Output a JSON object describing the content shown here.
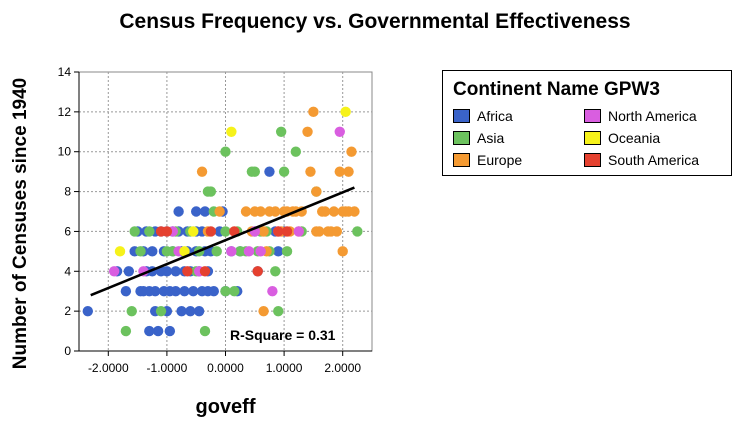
{
  "title": "Census Frequency vs. Governmental Effectiveness",
  "legend": {
    "title": "Continent Name GPW3",
    "items": [
      {
        "label": "Africa",
        "color": "#3a63c9"
      },
      {
        "label": "North America",
        "color": "#d95ee0"
      },
      {
        "label": "Asia",
        "color": "#6cc25e"
      },
      {
        "label": "Oceania",
        "color": "#f6f21a"
      },
      {
        "label": "Europe",
        "color": "#f49a32"
      },
      {
        "label": "South America",
        "color": "#e5412f"
      }
    ]
  },
  "chart_data": {
    "type": "scatter",
    "title": "Census Frequency vs. Governmental Effectiveness",
    "xlabel": "goveff",
    "ylabel": "Number of Censuses since 1940",
    "xlim": [
      -2.5,
      2.5
    ],
    "ylim": [
      0,
      14
    ],
    "x_ticks": [
      "-2.0000",
      "-1.0000",
      "0.0000",
      "1.0000",
      "2.0000"
    ],
    "y_ticks": [
      "0",
      "2",
      "4",
      "6",
      "8",
      "10",
      "12",
      "14"
    ],
    "grid": true,
    "annotation": "R-Square = 0.31",
    "fit_line": {
      "x": [
        -2.3,
        2.2
      ],
      "y": [
        2.8,
        8.2
      ]
    },
    "series": [
      {
        "name": "Africa",
        "color": "#3a63c9",
        "points": [
          [
            -2.35,
            2
          ],
          [
            -1.85,
            4
          ],
          [
            -1.7,
            3
          ],
          [
            -1.65,
            4
          ],
          [
            -1.55,
            5
          ],
          [
            -1.5,
            6
          ],
          [
            -1.45,
            3
          ],
          [
            -1.4,
            5
          ],
          [
            -1.4,
            3
          ],
          [
            -1.35,
            6
          ],
          [
            -1.35,
            4
          ],
          [
            -1.3,
            1
          ],
          [
            -1.3,
            3
          ],
          [
            -1.25,
            5
          ],
          [
            -1.25,
            4
          ],
          [
            -1.2,
            6
          ],
          [
            -1.2,
            3
          ],
          [
            -1.2,
            2
          ],
          [
            -1.15,
            1
          ],
          [
            -1.1,
            6
          ],
          [
            -1.1,
            4
          ],
          [
            -1.05,
            3
          ],
          [
            -1.05,
            5
          ],
          [
            -1.0,
            6
          ],
          [
            -1.0,
            4
          ],
          [
            -1.0,
            2
          ],
          [
            -0.95,
            3
          ],
          [
            -0.95,
            1
          ],
          [
            -0.9,
            5
          ],
          [
            -0.9,
            6
          ],
          [
            -0.85,
            3
          ],
          [
            -0.85,
            4
          ],
          [
            -0.8,
            7
          ],
          [
            -0.8,
            6
          ],
          [
            -0.75,
            5
          ],
          [
            -0.75,
            2
          ],
          [
            -0.7,
            4
          ],
          [
            -0.7,
            3
          ],
          [
            -0.65,
            6
          ],
          [
            -0.65,
            5
          ],
          [
            -0.6,
            4
          ],
          [
            -0.6,
            2
          ],
          [
            -0.55,
            3
          ],
          [
            -0.5,
            5
          ],
          [
            -0.5,
            6
          ],
          [
            -0.5,
            7
          ],
          [
            -0.45,
            4
          ],
          [
            -0.45,
            2
          ],
          [
            -0.4,
            3
          ],
          [
            -0.4,
            6
          ],
          [
            -0.35,
            5
          ],
          [
            -0.35,
            7
          ],
          [
            -0.3,
            3
          ],
          [
            -0.3,
            4
          ],
          [
            -0.25,
            5
          ],
          [
            -0.2,
            3
          ],
          [
            -0.1,
            6
          ],
          [
            -0.05,
            7
          ],
          [
            0.0,
            3
          ],
          [
            0.1,
            5
          ],
          [
            0.2,
            3
          ],
          [
            0.25,
            5
          ],
          [
            0.5,
            6
          ],
          [
            0.55,
            4
          ],
          [
            0.75,
            9
          ],
          [
            0.85,
            6
          ],
          [
            0.9,
            5
          ],
          [
            1.0,
            6
          ]
        ]
      },
      {
        "name": "Asia",
        "color": "#6cc25e",
        "points": [
          [
            -1.7,
            1
          ],
          [
            -1.6,
            2
          ],
          [
            -1.55,
            6
          ],
          [
            -1.45,
            5
          ],
          [
            -1.3,
            6
          ],
          [
            -1.1,
            2
          ],
          [
            -1.0,
            5
          ],
          [
            -0.9,
            5
          ],
          [
            -0.85,
            6
          ],
          [
            -0.6,
            6
          ],
          [
            -0.5,
            4
          ],
          [
            -0.45,
            5
          ],
          [
            -0.35,
            1
          ],
          [
            -0.3,
            8
          ],
          [
            -0.25,
            8
          ],
          [
            -0.2,
            7
          ],
          [
            -0.15,
            5
          ],
          [
            0.0,
            10
          ],
          [
            0.0,
            6
          ],
          [
            0.0,
            3
          ],
          [
            0.15,
            3
          ],
          [
            0.2,
            6
          ],
          [
            0.25,
            5
          ],
          [
            0.35,
            5
          ],
          [
            0.45,
            9
          ],
          [
            0.5,
            9
          ],
          [
            0.55,
            5
          ],
          [
            0.6,
            6
          ],
          [
            0.7,
            6
          ],
          [
            0.75,
            5
          ],
          [
            0.85,
            4
          ],
          [
            0.9,
            2
          ],
          [
            0.95,
            11
          ],
          [
            1.0,
            9
          ],
          [
            1.05,
            5
          ],
          [
            1.2,
            10
          ],
          [
            1.3,
            6
          ],
          [
            1.55,
            8
          ],
          [
            2.25,
            6
          ]
        ]
      },
      {
        "name": "Europe",
        "color": "#f49a32",
        "points": [
          [
            -0.4,
            9
          ],
          [
            -0.3,
            6
          ],
          [
            -0.1,
            7
          ],
          [
            0.35,
            7
          ],
          [
            0.45,
            6
          ],
          [
            0.5,
            7
          ],
          [
            0.6,
            7
          ],
          [
            0.65,
            6
          ],
          [
            0.7,
            5
          ],
          [
            0.75,
            7
          ],
          [
            0.85,
            7
          ],
          [
            0.95,
            6
          ],
          [
            1.0,
            7
          ],
          [
            1.05,
            7
          ],
          [
            1.1,
            6
          ],
          [
            1.15,
            7
          ],
          [
            1.2,
            7
          ],
          [
            1.25,
            6
          ],
          [
            1.3,
            7
          ],
          [
            1.4,
            11
          ],
          [
            1.45,
            9
          ],
          [
            1.5,
            12
          ],
          [
            1.55,
            8
          ],
          [
            1.6,
            6
          ],
          [
            1.65,
            7
          ],
          [
            1.7,
            7
          ],
          [
            1.75,
            6
          ],
          [
            1.8,
            6
          ],
          [
            1.85,
            7
          ],
          [
            1.9,
            6
          ],
          [
            1.95,
            9
          ],
          [
            2.0,
            7
          ],
          [
            2.0,
            5
          ],
          [
            2.05,
            7
          ],
          [
            2.1,
            9
          ],
          [
            2.1,
            7
          ],
          [
            2.15,
            10
          ],
          [
            2.2,
            7
          ],
          [
            0.65,
            2
          ],
          [
            1.55,
            6
          ]
        ]
      },
      {
        "name": "North America",
        "color": "#d95ee0",
        "points": [
          [
            -1.9,
            4
          ],
          [
            -1.4,
            4
          ],
          [
            -0.9,
            6
          ],
          [
            -0.8,
            5
          ],
          [
            -0.45,
            4
          ],
          [
            0.1,
            5
          ],
          [
            0.4,
            5
          ],
          [
            0.5,
            6
          ],
          [
            0.6,
            5
          ],
          [
            0.8,
            3
          ],
          [
            0.9,
            6
          ],
          [
            1.95,
            11
          ],
          [
            1.25,
            6
          ]
        ]
      },
      {
        "name": "Oceania",
        "color": "#f6f21a",
        "points": [
          [
            -1.8,
            5
          ],
          [
            -0.7,
            5
          ],
          [
            -0.55,
            6
          ],
          [
            0.1,
            11
          ],
          [
            2.05,
            12
          ]
        ]
      },
      {
        "name": "South America",
        "color": "#e5412f",
        "points": [
          [
            -1.1,
            6
          ],
          [
            -1.0,
            6
          ],
          [
            -0.65,
            4
          ],
          [
            -0.35,
            4
          ],
          [
            -0.25,
            6
          ],
          [
            0.15,
            6
          ],
          [
            0.55,
            4
          ],
          [
            0.9,
            6
          ],
          [
            1.05,
            6
          ]
        ]
      }
    ]
  }
}
